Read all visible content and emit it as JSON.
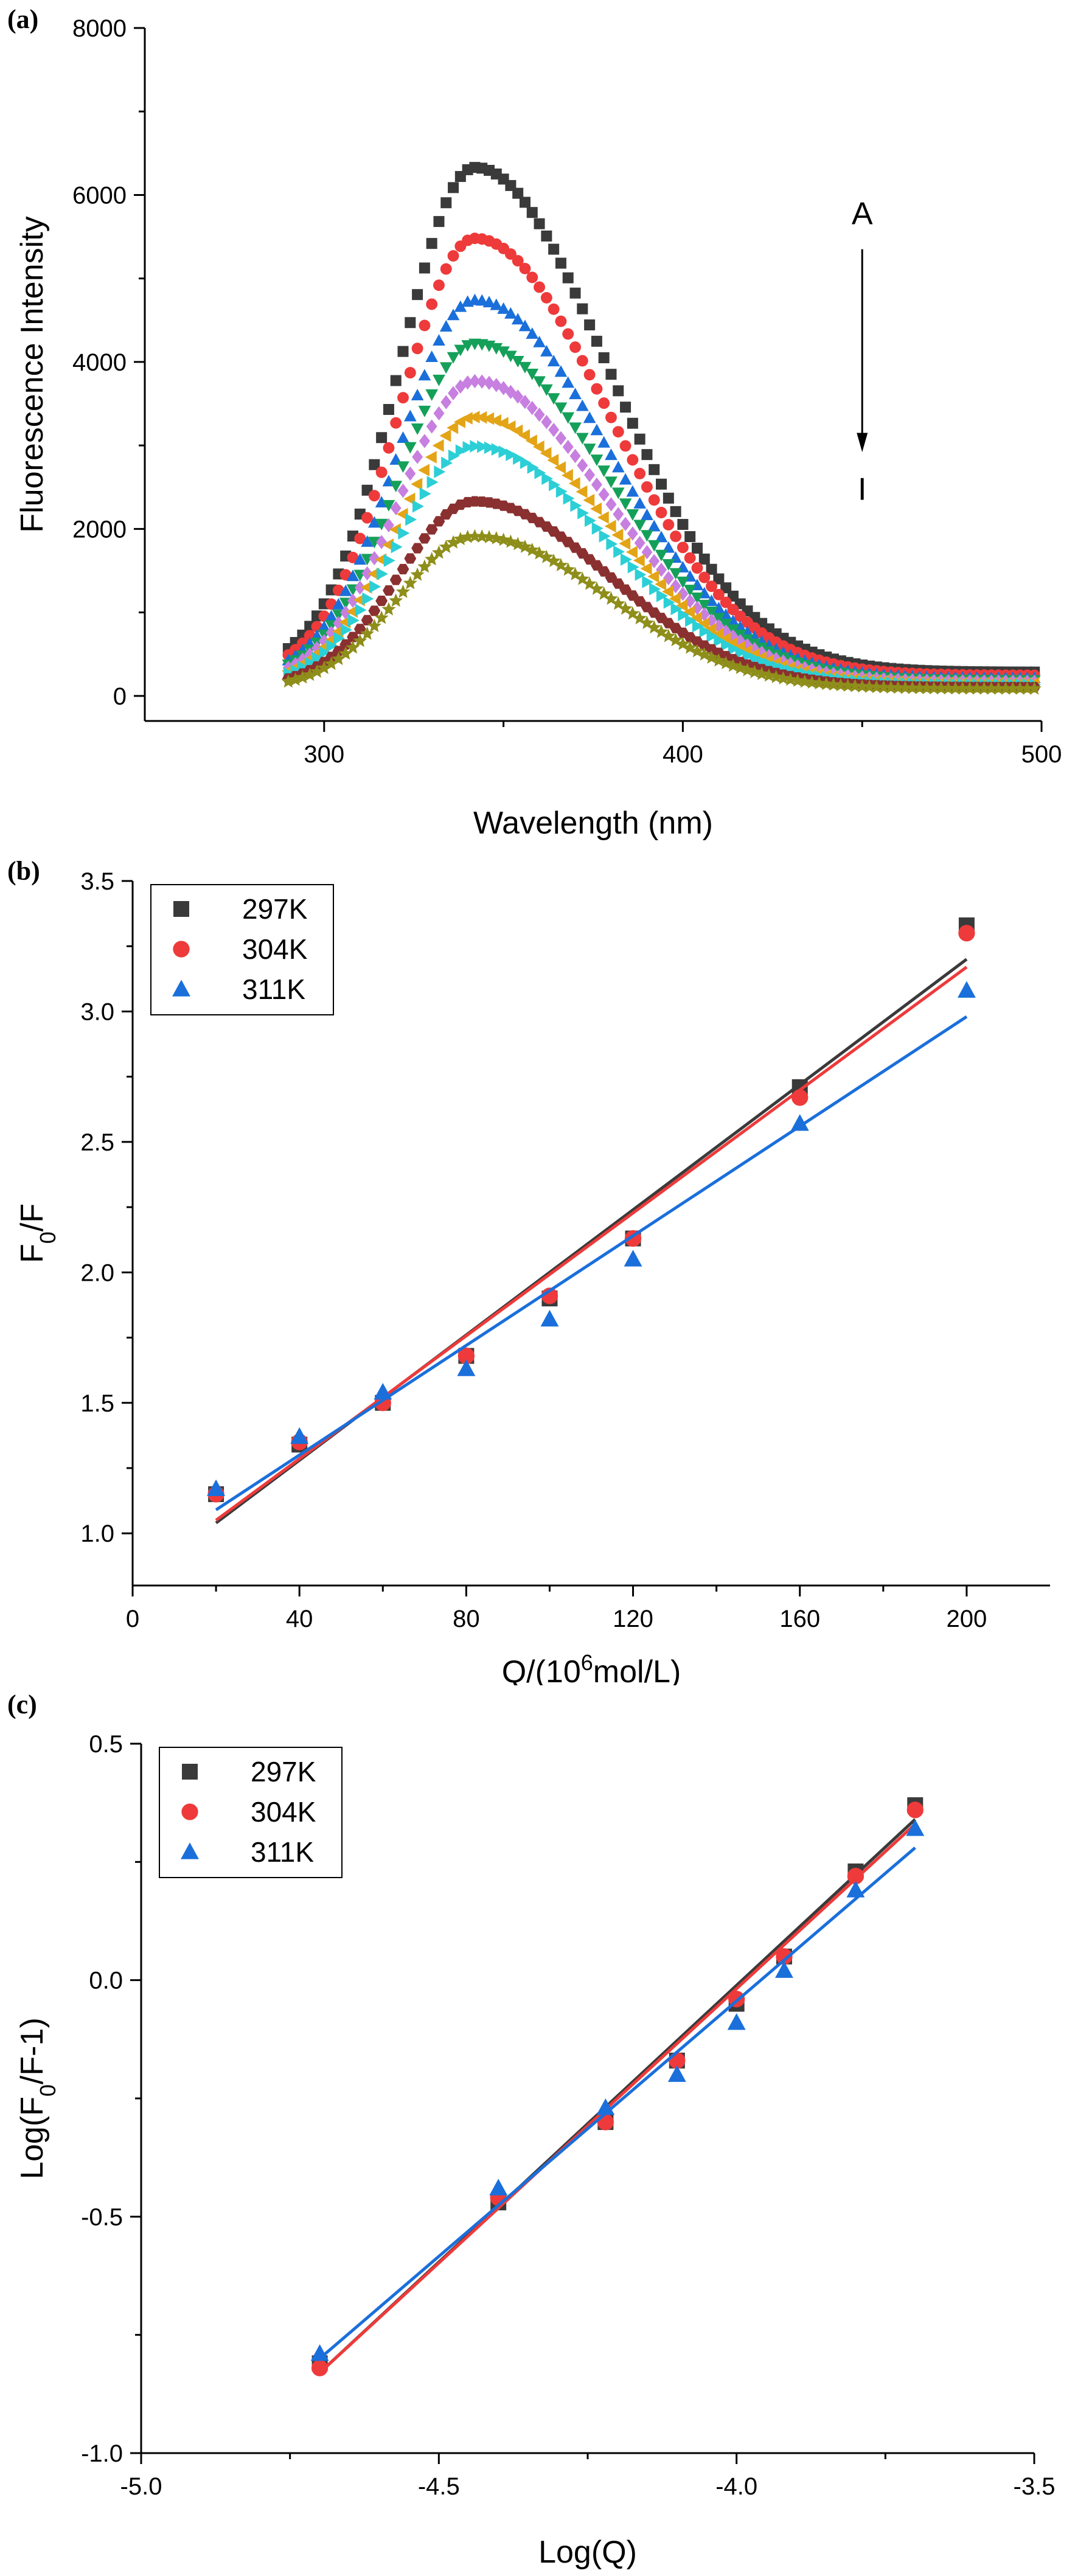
{
  "figure": {
    "panels": [
      {
        "label": "(a)"
      },
      {
        "label": "(b)"
      },
      {
        "label": "(c)"
      }
    ]
  },
  "chart_data": [
    {
      "type": "scatter",
      "xlabel": "Wavelength (nm)",
      "ylabel": "Fluorescence Intensity",
      "xlim": [
        250,
        500
      ],
      "ylim": [
        -300,
        8000
      ],
      "xticks": [
        300,
        400,
        500
      ],
      "yticks": [
        0,
        2000,
        4000,
        6000,
        8000
      ],
      "annotation_top": "A",
      "annotation_bottom": "I",
      "peak_wavelength": 342,
      "series": [
        {
          "color": "#3a3a3a",
          "marker": "square",
          "peak": 6330
        },
        {
          "color": "#ee3a3a",
          "marker": "circle",
          "peak": 5480
        },
        {
          "color": "#1a6fdb",
          "marker": "triangle",
          "peak": 4740
        },
        {
          "color": "#15a05a",
          "marker": "triangle-down",
          "peak": 4220
        },
        {
          "color": "#c77fe0",
          "marker": "diamond",
          "peak": 3770
        },
        {
          "color": "#e3a517",
          "marker": "triangle-left",
          "peak": 3340
        },
        {
          "color": "#2ccfd6",
          "marker": "triangle-right",
          "peak": 2990
        },
        {
          "color": "#8a3030",
          "marker": "hexagon",
          "peak": 2330
        },
        {
          "color": "#8e8e1a",
          "marker": "star",
          "peak": 1910
        }
      ]
    },
    {
      "type": "scatter",
      "xlabel": "Q/(10^6mol/L)",
      "ylabel": "F0/F",
      "xlim": [
        0,
        220
      ],
      "ylim": [
        0.8,
        3.5
      ],
      "xticks": [
        0,
        40,
        80,
        120,
        160,
        200
      ],
      "yticks": [
        1.0,
        1.5,
        2.0,
        2.5,
        3.0,
        3.5
      ],
      "legend_position": "top-left",
      "series": [
        {
          "name": "297K",
          "color": "#3a3a3a",
          "marker": "square",
          "x": [
            20,
            40,
            60,
            80,
            100,
            120,
            160,
            200
          ],
          "y": [
            1.15,
            1.34,
            1.5,
            1.68,
            1.9,
            2.13,
            2.71,
            3.33
          ],
          "fit": [
            1.04,
            3.2
          ]
        },
        {
          "name": "304K",
          "color": "#ee3a3a",
          "marker": "circle",
          "x": [
            20,
            40,
            60,
            80,
            100,
            120,
            160,
            200
          ],
          "y": [
            1.15,
            1.35,
            1.5,
            1.68,
            1.91,
            2.13,
            2.67,
            3.3
          ],
          "fit": [
            1.05,
            3.17
          ]
        },
        {
          "name": "311K",
          "color": "#1a6fdb",
          "marker": "triangle",
          "x": [
            20,
            40,
            60,
            80,
            100,
            120,
            160,
            200
          ],
          "y": [
            1.17,
            1.37,
            1.54,
            1.63,
            1.82,
            2.05,
            2.57,
            3.08
          ],
          "fit": [
            1.09,
            2.98
          ]
        }
      ]
    },
    {
      "type": "scatter",
      "xlabel": "Log(Q)",
      "ylabel": "Log(F0/F-1)",
      "xlim": [
        -5.0,
        -3.5
      ],
      "ylim": [
        -1.0,
        0.5
      ],
      "xticks": [
        -5.0,
        -4.5,
        -4.0,
        -3.5
      ],
      "yticks": [
        -1.0,
        -0.5,
        0.0,
        0.5
      ],
      "legend_position": "top-left",
      "series": [
        {
          "name": "297K",
          "color": "#3a3a3a",
          "marker": "square",
          "x": [
            -4.7,
            -4.4,
            -4.22,
            -4.1,
            -4.0,
            -3.92,
            -3.8,
            -3.7
          ],
          "y": [
            -0.81,
            -0.47,
            -0.3,
            -0.17,
            -0.05,
            0.05,
            0.23,
            0.37
          ],
          "fit": [
            -0.83,
            0.34
          ]
        },
        {
          "name": "304K",
          "color": "#ee3a3a",
          "marker": "circle",
          "x": [
            -4.7,
            -4.4,
            -4.22,
            -4.1,
            -4.0,
            -3.92,
            -3.8,
            -3.7
          ],
          "y": [
            -0.82,
            -0.46,
            -0.3,
            -0.17,
            -0.04,
            0.05,
            0.22,
            0.36
          ],
          "fit": [
            -0.83,
            0.33
          ]
        },
        {
          "name": "311K",
          "color": "#1a6fdb",
          "marker": "triangle",
          "x": [
            -4.7,
            -4.4,
            -4.22,
            -4.1,
            -4.0,
            -3.92,
            -3.8,
            -3.7
          ],
          "y": [
            -0.79,
            -0.44,
            -0.27,
            -0.2,
            -0.09,
            0.02,
            0.19,
            0.32
          ],
          "fit": [
            -0.8,
            0.28
          ]
        }
      ]
    }
  ]
}
